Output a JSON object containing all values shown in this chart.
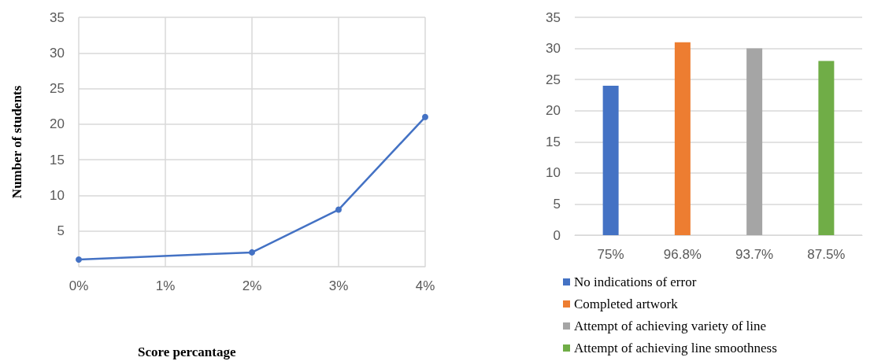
{
  "chart_data": [
    {
      "type": "line",
      "xlabel": "Score percantage",
      "ylabel": "Number of students",
      "categories": [
        "0%",
        "1%",
        "2%",
        "3%",
        "4%"
      ],
      "series": [
        {
          "color": "#4472c4",
          "values": [
            1,
            null,
            2,
            8,
            21
          ]
        }
      ],
      "ylim": [
        0,
        35
      ],
      "yticks": [
        5,
        10,
        15,
        20,
        25,
        30,
        35
      ],
      "grid": true,
      "marker": "circle",
      "legend": false
    },
    {
      "type": "bar",
      "categories": [
        "75%",
        "96.8%",
        "93.7%",
        "87.5%"
      ],
      "stacked": true,
      "series": [
        {
          "name": "No indications of error",
          "color": "#4472c4",
          "values": [
            24,
            null,
            null,
            null
          ]
        },
        {
          "name": "Completed artwork",
          "color": "#ed7d31",
          "values": [
            null,
            31,
            null,
            null
          ]
        },
        {
          "name": "Attempt of achieving variety of line",
          "color": "#a5a5a5",
          "values": [
            null,
            null,
            30,
            null
          ]
        },
        {
          "name": "Attempt of achieving line smoothness",
          "color": "#70ad47",
          "values": [
            null,
            null,
            null,
            28
          ]
        }
      ],
      "ylim": [
        0,
        35
      ],
      "yticks": [
        0,
        5,
        10,
        15,
        20,
        25,
        30,
        35
      ],
      "grid": "y",
      "legend": "bottom"
    }
  ]
}
